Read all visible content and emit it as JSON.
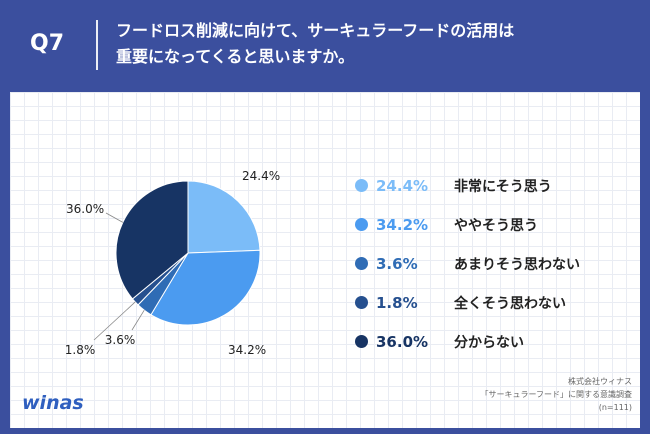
{
  "header": {
    "qnum": "Q7",
    "question_line1": "フードロス削減に向けて、サーキュラーフードの活用は",
    "question_line2": "重要になってくると思いますか。"
  },
  "footer": {
    "logo": "winas",
    "credit_line1": "株式会社ウィナス",
    "credit_line2": "「サーキュラーフード」に関する意識調査",
    "credit_line3": "(n=111)"
  },
  "chart_data": {
    "type": "pie",
    "title": "",
    "slices": [
      {
        "label": "非常にそう思う",
        "value": 24.4,
        "display": "24.4%",
        "color": "#7bbcf8"
      },
      {
        "label": "ややそう思う",
        "value": 34.2,
        "display": "34.2%",
        "color": "#4b9bf0"
      },
      {
        "label": "あまりそう思わない",
        "value": 3.6,
        "display": "3.6%",
        "color": "#2f6cb5"
      },
      {
        "label": "全くそう思わない",
        "value": 1.8,
        "display": "1.8%",
        "color": "#26508f"
      },
      {
        "label": "分からない",
        "value": 36.0,
        "display": "36.0%",
        "color": "#173464"
      }
    ],
    "start": "12 o'clock",
    "direction": "clockwise",
    "legend_position": "right"
  }
}
